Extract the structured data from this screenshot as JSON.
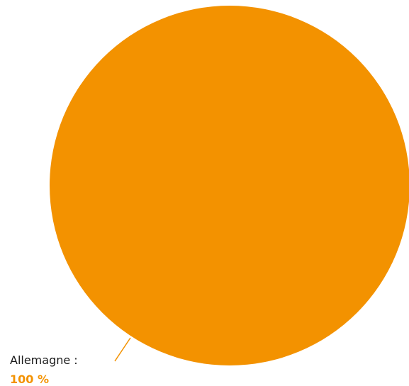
{
  "chart_data": {
    "type": "pie",
    "slices": [
      {
        "label": "Allemagne :",
        "value": 100,
        "value_text": "100 %",
        "color": "#F39200"
      }
    ],
    "legend": "none",
    "data_labels": "outside-bottom-left"
  }
}
